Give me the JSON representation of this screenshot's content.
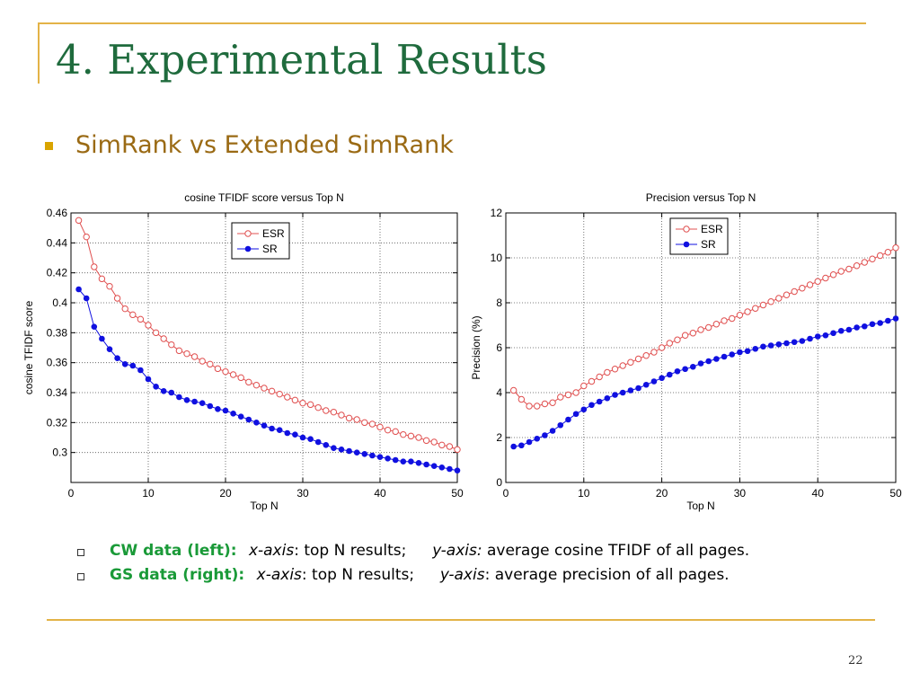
{
  "slide": {
    "title": "4. Experimental Results",
    "subtitle": "SimRank vs Extended SimRank",
    "page_number": "22",
    "accent_color": "#e3b347",
    "title_color": "#1f6b3d",
    "subtitle_color": "#9a6a14"
  },
  "notes": [
    {
      "dataset": "CW data (left):",
      "x_axis_label": "x-axis",
      "x_text": ": top N results;",
      "y_axis_label": "y-axis:",
      "y_text": " average cosine TFIDF of all pages."
    },
    {
      "dataset": "GS data (right):",
      "x_axis_label": "x-axis",
      "x_text": ": top N results;",
      "y_axis_label": "y-axis",
      "y_text": ": average precision of all pages."
    }
  ],
  "chart_data": [
    {
      "type": "line",
      "title": "cosine TFIDF score versus Top N",
      "xlabel": "Top N",
      "ylabel": "cosine TFIDF score",
      "xlim": [
        0,
        50
      ],
      "ylim": [
        0.28,
        0.46
      ],
      "xticks": [
        0,
        10,
        20,
        30,
        40,
        50
      ],
      "yticks": [
        0.3,
        0.32,
        0.34,
        0.36,
        0.38,
        0.4,
        0.42,
        0.44,
        0.46
      ],
      "tick_labels_x": [
        "0",
        "10",
        "20",
        "30",
        "40",
        "50"
      ],
      "tick_labels_y": [
        "0.3",
        "0.32",
        "0.34",
        "0.36",
        "0.38",
        "0.4",
        "0.42",
        "0.44",
        "0.46"
      ],
      "grid": true,
      "legend_position": "top-right",
      "x": [
        1,
        2,
        3,
        4,
        5,
        6,
        7,
        8,
        9,
        10,
        11,
        12,
        13,
        14,
        15,
        16,
        17,
        18,
        19,
        20,
        21,
        22,
        23,
        24,
        25,
        26,
        27,
        28,
        29,
        30,
        31,
        32,
        33,
        34,
        35,
        36,
        37,
        38,
        39,
        40,
        41,
        42,
        43,
        44,
        45,
        46,
        47,
        48,
        49,
        50
      ],
      "series": [
        {
          "name": "ESR",
          "color": "#e05050",
          "marker": "open-circle",
          "values": [
            0.455,
            0.444,
            0.424,
            0.416,
            0.411,
            0.403,
            0.396,
            0.392,
            0.389,
            0.385,
            0.38,
            0.376,
            0.372,
            0.368,
            0.366,
            0.364,
            0.361,
            0.359,
            0.356,
            0.354,
            0.352,
            0.35,
            0.347,
            0.345,
            0.343,
            0.341,
            0.339,
            0.337,
            0.335,
            0.333,
            0.332,
            0.33,
            0.328,
            0.327,
            0.325,
            0.323,
            0.322,
            0.32,
            0.319,
            0.317,
            0.315,
            0.314,
            0.312,
            0.311,
            0.31,
            0.308,
            0.307,
            0.305,
            0.304,
            0.302
          ]
        },
        {
          "name": "SR",
          "color": "#1010e0",
          "marker": "filled-circle",
          "values": [
            0.409,
            0.403,
            0.384,
            0.376,
            0.369,
            0.363,
            0.359,
            0.358,
            0.355,
            0.349,
            0.344,
            0.341,
            0.34,
            0.337,
            0.335,
            0.334,
            0.333,
            0.331,
            0.329,
            0.328,
            0.326,
            0.324,
            0.322,
            0.32,
            0.318,
            0.316,
            0.315,
            0.313,
            0.312,
            0.31,
            0.309,
            0.307,
            0.305,
            0.303,
            0.302,
            0.301,
            0.3,
            0.299,
            0.298,
            0.297,
            0.296,
            0.295,
            0.294,
            0.294,
            0.293,
            0.292,
            0.291,
            0.29,
            0.289,
            0.288
          ]
        }
      ]
    },
    {
      "type": "line",
      "title": "Precision versus Top N",
      "xlabel": "Top N",
      "ylabel": "Precision (%)",
      "xlim": [
        0,
        50
      ],
      "ylim": [
        0,
        12
      ],
      "xticks": [
        0,
        10,
        20,
        30,
        40,
        50
      ],
      "yticks": [
        0,
        2,
        4,
        6,
        8,
        10,
        12
      ],
      "tick_labels_x": [
        "0",
        "10",
        "20",
        "30",
        "40",
        "50"
      ],
      "tick_labels_y": [
        "0",
        "2",
        "4",
        "6",
        "8",
        "10",
        "12"
      ],
      "grid": true,
      "legend_position": "top-left",
      "x": [
        1,
        2,
        3,
        4,
        5,
        6,
        7,
        8,
        9,
        10,
        11,
        12,
        13,
        14,
        15,
        16,
        17,
        18,
        19,
        20,
        21,
        22,
        23,
        24,
        25,
        26,
        27,
        28,
        29,
        30,
        31,
        32,
        33,
        34,
        35,
        36,
        37,
        38,
        39,
        40,
        41,
        42,
        43,
        44,
        45,
        46,
        47,
        48,
        49,
        50
      ],
      "series": [
        {
          "name": "ESR",
          "color": "#e05050",
          "marker": "open-circle",
          "values": [
            4.1,
            3.7,
            3.4,
            3.4,
            3.5,
            3.55,
            3.8,
            3.9,
            4.0,
            4.3,
            4.5,
            4.7,
            4.9,
            5.05,
            5.2,
            5.35,
            5.5,
            5.65,
            5.8,
            6.0,
            6.2,
            6.35,
            6.55,
            6.65,
            6.8,
            6.9,
            7.05,
            7.2,
            7.3,
            7.45,
            7.6,
            7.75,
            7.9,
            8.05,
            8.2,
            8.35,
            8.5,
            8.65,
            8.8,
            8.95,
            9.1,
            9.25,
            9.4,
            9.5,
            9.65,
            9.8,
            9.95,
            10.1,
            10.25,
            10.45
          ]
        },
        {
          "name": "SR",
          "color": "#1010e0",
          "marker": "filled-circle",
          "values": [
            1.6,
            1.65,
            1.8,
            1.95,
            2.1,
            2.3,
            2.55,
            2.8,
            3.05,
            3.25,
            3.45,
            3.6,
            3.75,
            3.9,
            4.0,
            4.1,
            4.2,
            4.35,
            4.5,
            4.65,
            4.8,
            4.95,
            5.05,
            5.15,
            5.3,
            5.4,
            5.5,
            5.6,
            5.7,
            5.8,
            5.85,
            5.95,
            6.05,
            6.1,
            6.15,
            6.2,
            6.25,
            6.3,
            6.4,
            6.5,
            6.55,
            6.65,
            6.75,
            6.8,
            6.9,
            6.95,
            7.05,
            7.1,
            7.2,
            7.3
          ]
        }
      ]
    }
  ]
}
